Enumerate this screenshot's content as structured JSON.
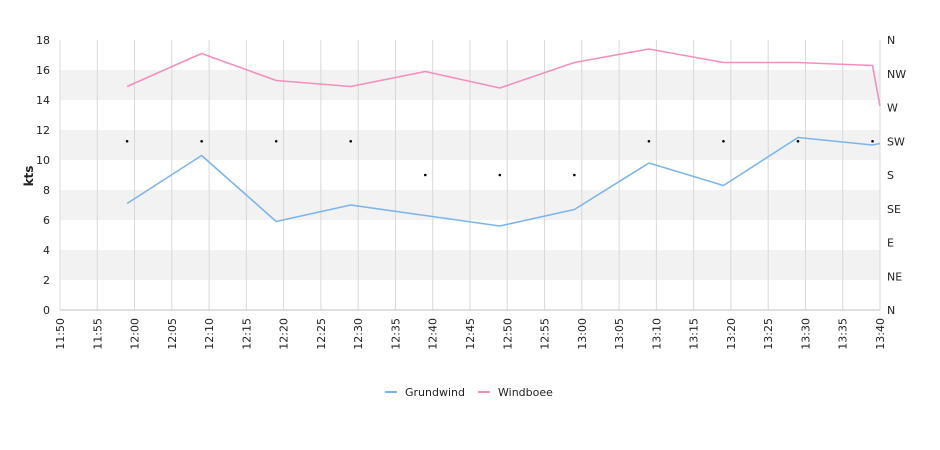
{
  "chart_data": {
    "type": "line",
    "ylabel": "kts",
    "ylim": [
      0,
      18
    ],
    "y_ticks": [
      0,
      2,
      4,
      6,
      8,
      10,
      12,
      14,
      16,
      18
    ],
    "x_ticks": [
      "11:50",
      "11:55",
      "12:00",
      "12:05",
      "12:10",
      "12:15",
      "12:20",
      "12:25",
      "12:30",
      "12:35",
      "12:40",
      "12:45",
      "12:50",
      "12:55",
      "13:00",
      "13:05",
      "13:10",
      "13:15",
      "13:20",
      "13:25",
      "13:30",
      "13:35",
      "13:40"
    ],
    "direction_ticks": [
      "N",
      "NW",
      "W",
      "SW",
      "S",
      "SE",
      "E",
      "NE",
      "N"
    ],
    "x_range": [
      "11:50",
      "13:40"
    ],
    "series": [
      {
        "name": "Grundwind",
        "color": "#7cb5ec",
        "points": [
          {
            "x": "11:59",
            "y": 7.1
          },
          {
            "x": "12:09",
            "y": 10.3
          },
          {
            "x": "12:19",
            "y": 5.9
          },
          {
            "x": "12:29",
            "y": 7.0
          },
          {
            "x": "12:39",
            "y": 6.3
          },
          {
            "x": "12:49",
            "y": 5.6
          },
          {
            "x": "12:59",
            "y": 6.7
          },
          {
            "x": "13:09",
            "y": 9.8
          },
          {
            "x": "13:19",
            "y": 8.3
          },
          {
            "x": "13:29",
            "y": 11.5
          },
          {
            "x": "13:39",
            "y": 11.0
          },
          {
            "x": "13:40",
            "y": 11.1
          }
        ]
      },
      {
        "name": "Windboee",
        "color": "#f28fbf",
        "points": [
          {
            "x": "11:59",
            "y": 14.9
          },
          {
            "x": "12:09",
            "y": 17.1
          },
          {
            "x": "12:19",
            "y": 15.3
          },
          {
            "x": "12:29",
            "y": 14.9
          },
          {
            "x": "12:39",
            "y": 15.9
          },
          {
            "x": "12:49",
            "y": 14.8
          },
          {
            "x": "12:59",
            "y": 16.5
          },
          {
            "x": "13:09",
            "y": 17.4
          },
          {
            "x": "13:19",
            "y": 16.5
          },
          {
            "x": "13:29",
            "y": 16.5
          },
          {
            "x": "13:39",
            "y": 16.3
          },
          {
            "x": "13:40",
            "y": 13.6
          }
        ]
      }
    ],
    "direction_points": [
      {
        "x": "11:59",
        "dir": "SW"
      },
      {
        "x": "12:09",
        "dir": "SW"
      },
      {
        "x": "12:19",
        "dir": "SW"
      },
      {
        "x": "12:29",
        "dir": "SW"
      },
      {
        "x": "12:39",
        "dir": "S"
      },
      {
        "x": "12:49",
        "dir": "S"
      },
      {
        "x": "12:59",
        "dir": "S"
      },
      {
        "x": "13:09",
        "dir": "SW"
      },
      {
        "x": "13:19",
        "dir": "SW"
      },
      {
        "x": "13:29",
        "dir": "SW"
      },
      {
        "x": "13:39",
        "dir": "SW"
      }
    ],
    "bands": "alternating light grey",
    "grid": true,
    "legend": "bottom-center"
  },
  "colors": {
    "band": "#f2f2f2",
    "grid": "#d8d8d8",
    "axis": "#c0c0c0",
    "dots": "#000000"
  }
}
